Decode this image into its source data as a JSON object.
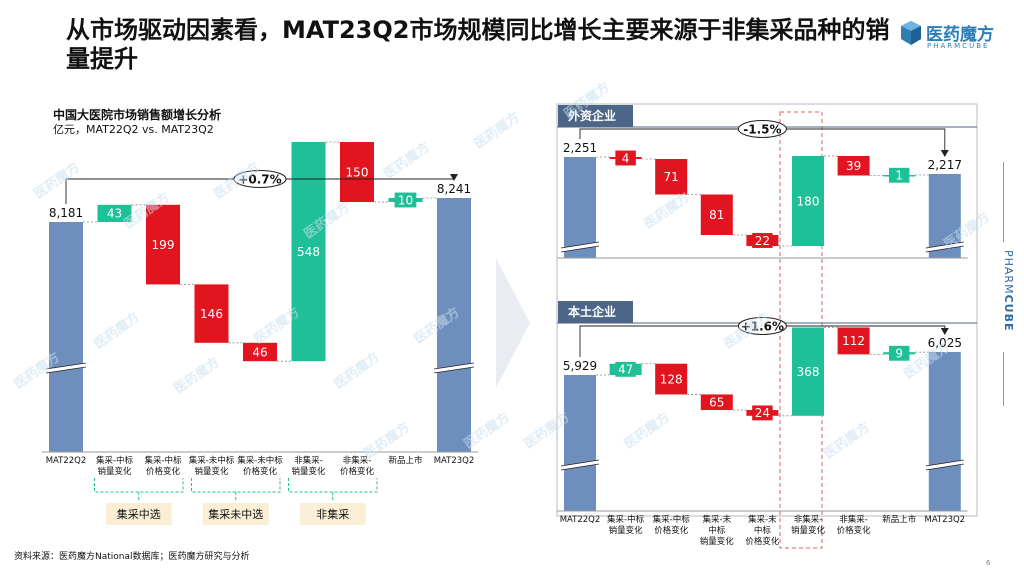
{
  "title": "从市场驱动因素看，MAT23Q2市场规模同比增长主要来源于非集采品种的销量提升",
  "logo": {
    "name": "医药魔方",
    "sub": "PHARMCUBE"
  },
  "side_brand": {
    "light": "PHARM",
    "bold": "CUBE"
  },
  "watermark": "医药魔方",
  "source": "资料来源：医药魔方National数据库；医药魔方研究与分析",
  "page_number": "6",
  "colors": {
    "base": "#6e8fbe",
    "green": "#1fbf98",
    "red": "#e2141f",
    "panel": "#4d6586",
    "dashed": "#e06060"
  },
  "left_chart": {
    "title": "中国大医院市场销售额增长分析",
    "subtitle": "亿元，MAT22Q2 vs. MAT23Q2"
  },
  "top_chart": {
    "panel_label": "外资企业"
  },
  "bottom_chart": {
    "panel_label": "本土企业"
  },
  "chart_data": [
    {
      "type": "bar",
      "subtype": "waterfall",
      "categories": [
        "MAT22Q2",
        "集采-中标销量变化",
        "集采-中标价格变化",
        "集采-未中标销量变化",
        "集采-未中标价格变化",
        "非集采-销量变化",
        "非集采-价格变化",
        "新品上市",
        "MAT23Q2"
      ],
      "values": [
        8181,
        43,
        -199,
        -146,
        -46,
        548,
        -150,
        10,
        8241
      ],
      "value_labels": [
        "8,181",
        "43",
        "199",
        "146",
        "46",
        "548",
        "150",
        "10",
        "8,241"
      ],
      "bar_kinds": [
        "total",
        "up",
        "down",
        "down",
        "down",
        "up",
        "down",
        "up",
        "total"
      ],
      "growth_label": "+0.7%",
      "groups": [
        {
          "label": "集采中选",
          "span": [
            1,
            2
          ]
        },
        {
          "label": "集采未中选",
          "span": [
            3,
            4
          ]
        },
        {
          "label": "非集采",
          "span": [
            5,
            6
          ]
        }
      ],
      "axis_break": true
    },
    {
      "type": "bar",
      "subtype": "waterfall",
      "series_group": "外资企业",
      "categories": [
        "MAT22Q2",
        "集采-中标销量变化",
        "集采-中标价格变化",
        "集采-未中标销量变化",
        "集采-未中标价格变化",
        "非集采-销量变化",
        "非集采-价格变化",
        "新品上市",
        "MAT23Q2"
      ],
      "values": [
        2251,
        -4,
        -71,
        -81,
        -22,
        180,
        -39,
        1,
        2217
      ],
      "value_labels": [
        "2,251",
        "4",
        "71",
        "81",
        "22",
        "180",
        "39",
        "1",
        "2,217"
      ],
      "bar_kinds": [
        "total",
        "down",
        "down",
        "down",
        "down",
        "up",
        "down",
        "up",
        "total"
      ],
      "growth_label": "-1.5%",
      "axis_break": true
    },
    {
      "type": "bar",
      "subtype": "waterfall",
      "series_group": "本土企业",
      "categories": [
        "MAT22Q2",
        "集采-中标销量变化",
        "集采-中标价格变化",
        "集采-未中标销量变化",
        "集采-未中标价格变化",
        "非集采-销量变化",
        "非集采-价格变化",
        "新品上市",
        "MAT23Q2"
      ],
      "values": [
        5929,
        47,
        -128,
        -65,
        -24,
        368,
        -112,
        9,
        6025
      ],
      "value_labels": [
        "5,929",
        "47",
        "128",
        "65",
        "24",
        "368",
        "112",
        "9",
        "6,025"
      ],
      "bar_kinds": [
        "total",
        "up",
        "down",
        "down",
        "down",
        "up",
        "down",
        "up",
        "total"
      ],
      "growth_label": "+1.6%",
      "axis_break": true
    }
  ],
  "left_tick_labels": [
    [
      "MAT22Q2"
    ],
    [
      "集采-中标",
      "销量变化"
    ],
    [
      "集采-中标",
      "价格变化"
    ],
    [
      "集采-未中标",
      "销量变化"
    ],
    [
      "集采-未中标",
      "价格变化"
    ],
    [
      "非集采-",
      "销量变化"
    ],
    [
      "非集采-",
      "价格变化"
    ],
    [
      "新品上市"
    ],
    [
      "MAT23Q2"
    ]
  ],
  "right_tick_labels": [
    [
      "MAT22Q2"
    ],
    [
      "集采-中标",
      "销量变化"
    ],
    [
      "集采-中标",
      "价格变化"
    ],
    [
      "集采-未",
      "中标",
      "销量变化"
    ],
    [
      "集采-未",
      "中标",
      "价格变化"
    ],
    [
      "非集采-",
      "销量变化"
    ],
    [
      "非集采-",
      "价格变化"
    ],
    [
      "新品上市"
    ],
    [
      "MAT23Q2"
    ]
  ]
}
